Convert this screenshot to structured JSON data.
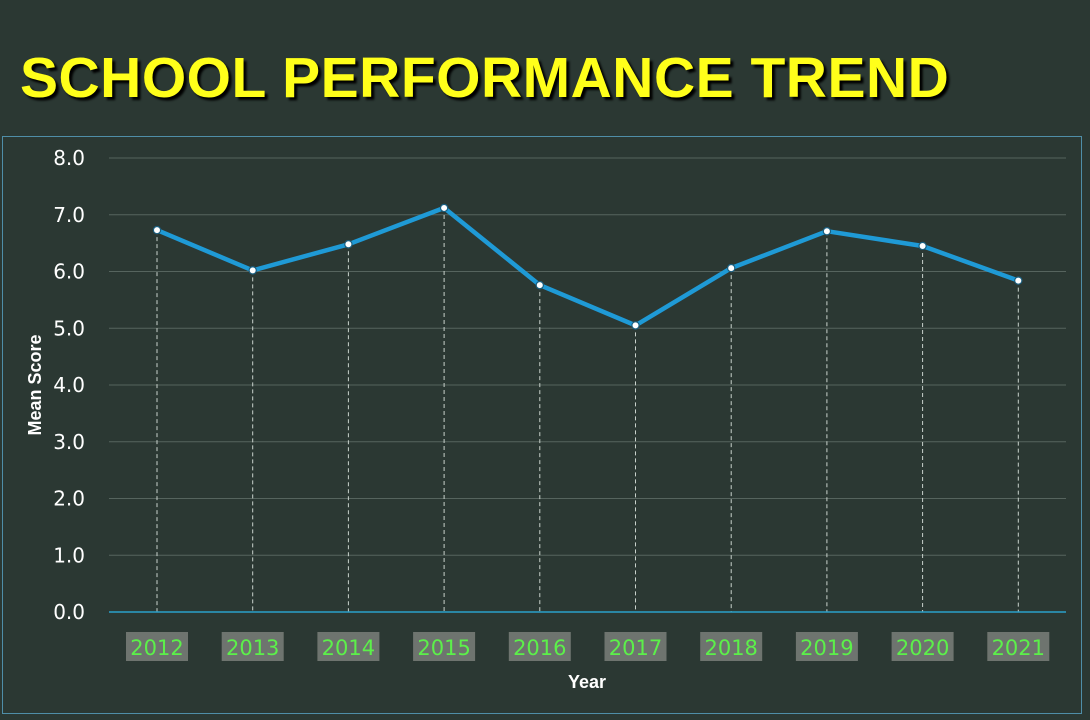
{
  "slide": {
    "title": "SCHOOL PERFORMANCE TREND"
  },
  "colors": {
    "background": "#2b3833",
    "title": "#ffff1a",
    "line": "#1f9ad6",
    "marker_fill": "#ffffff",
    "gridline": "#56645e",
    "x_tick_label": "#5cf04a",
    "x_tick_box": "#6e746f",
    "axis_line": "#2a9fc9"
  },
  "chart_data": {
    "type": "line",
    "title": "",
    "xlabel": "Year",
    "ylabel": "Mean Score",
    "categories": [
      "2012",
      "2013",
      "2014",
      "2015",
      "2016",
      "2017",
      "2018",
      "2019",
      "2020",
      "2021"
    ],
    "series": [
      {
        "values": [
          6.73,
          6.02,
          6.48,
          7.12,
          5.76,
          5.05,
          6.06,
          6.71,
          6.45,
          5.84
        ]
      }
    ],
    "ylim": [
      0,
      8
    ],
    "yticks": [
      "0.0",
      "1.0",
      "2.0",
      "3.0",
      "4.0",
      "5.0",
      "6.0",
      "7.0",
      "8.0"
    ],
    "grid": true,
    "drop_lines": true,
    "markers": true,
    "legend": "none"
  }
}
